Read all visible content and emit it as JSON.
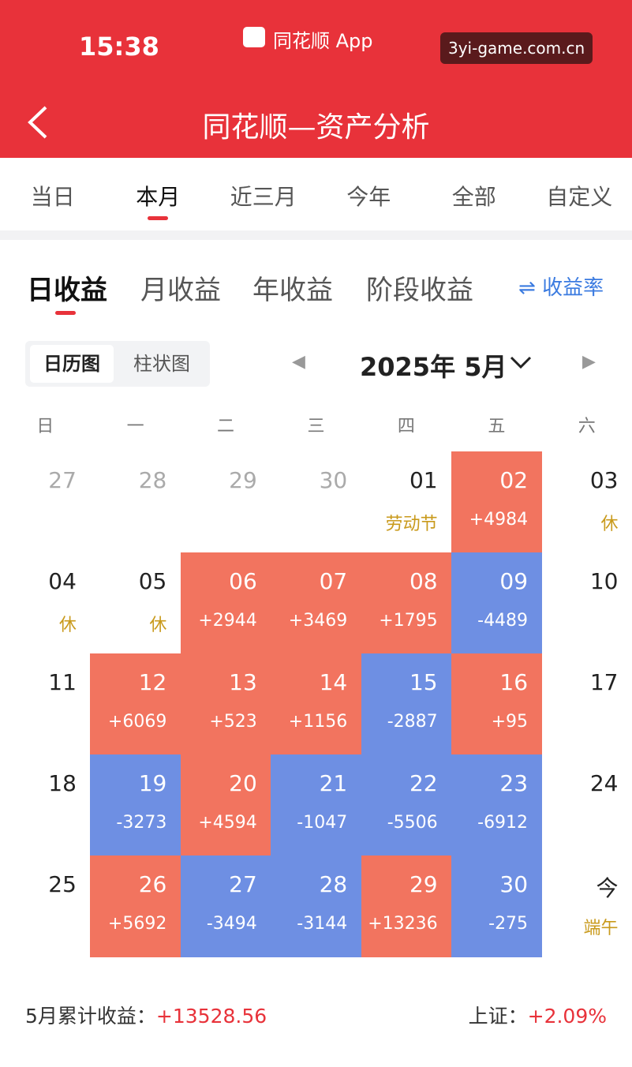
{
  "status_bar": {
    "time": "15:38",
    "app": "同花顺 App",
    "watermark": "3yi-game.com.cn"
  },
  "header": {
    "title": "同花顺—资产分析"
  },
  "period_tabs": [
    "当日",
    "本月",
    "近三月",
    "今年",
    "全部",
    "自定义"
  ],
  "profit_tabs": [
    "日收益",
    "月收益",
    "年收益",
    "阶段收益"
  ],
  "rate_toggle": "收益率",
  "view_tabs": [
    "日历图",
    "柱状图"
  ],
  "month": "2025年 5月",
  "weekdays": [
    "日",
    "一",
    "二",
    "三",
    "四",
    "五",
    "六"
  ],
  "calendar": [
    [
      {
        "day": "27",
        "text_color": "#aaaaaa"
      },
      {
        "day": "28",
        "text_color": "#aaaaaa"
      },
      {
        "day": "29",
        "text_color": "#aaaaaa"
      },
      {
        "day": "30",
        "text_color": "#aaaaaa"
      },
      {
        "day": "01",
        "note": "劳动节"
      },
      {
        "day": "02",
        "note": "+4984",
        "fill": "#f2745f"
      },
      {
        "day": "03",
        "note": "休"
      }
    ],
    [
      {
        "day": "04",
        "note": "休"
      },
      {
        "day": "05",
        "note": "休"
      },
      {
        "day": "06",
        "note": "+2944",
        "fill": "#f2745f"
      },
      {
        "day": "07",
        "note": "+3469",
        "fill": "#f2745f"
      },
      {
        "day": "08",
        "note": "+1795",
        "fill": "#f2745f"
      },
      {
        "day": "09",
        "note": "-4489",
        "fill": "#6e8fe3"
      },
      {
        "day": "10"
      }
    ],
    [
      {
        "day": "11"
      },
      {
        "day": "12",
        "note": "+6069",
        "fill": "#f2745f"
      },
      {
        "day": "13",
        "note": "+523",
        "fill": "#f2745f"
      },
      {
        "day": "14",
        "note": "+1156",
        "fill": "#f2745f"
      },
      {
        "day": "15",
        "note": "-2887",
        "fill": "#6e8fe3"
      },
      {
        "day": "16",
        "note": "+95",
        "fill": "#f2745f"
      },
      {
        "day": "17"
      }
    ],
    [
      {
        "day": "18"
      },
      {
        "day": "19",
        "note": "-3273",
        "fill": "#6e8fe3"
      },
      {
        "day": "20",
        "note": "+4594",
        "fill": "#f2745f"
      },
      {
        "day": "21",
        "note": "-1047",
        "fill": "#6e8fe3"
      },
      {
        "day": "22",
        "note": "-5506",
        "fill": "#6e8fe3"
      },
      {
        "day": "23",
        "note": "-6912",
        "fill": "#6e8fe3"
      },
      {
        "day": "24"
      }
    ],
    [
      {
        "day": "25"
      },
      {
        "day": "26",
        "note": "+5692",
        "fill": "#f2745f"
      },
      {
        "day": "27",
        "note": "-3494",
        "fill": "#6e8fe3"
      },
      {
        "day": "28",
        "note": "-3144",
        "fill": "#6e8fe3"
      },
      {
        "day": "29",
        "note": "+13236",
        "fill": "#f2745f"
      },
      {
        "day": "30",
        "note": "-275",
        "fill": "#6e8fe3"
      },
      {
        "day": "今",
        "note": "端午"
      }
    ]
  ],
  "footer": {
    "label": "5月累计收益：",
    "value": "+13528.56",
    "index_label": "上证：",
    "index_value": "+2.09%"
  }
}
